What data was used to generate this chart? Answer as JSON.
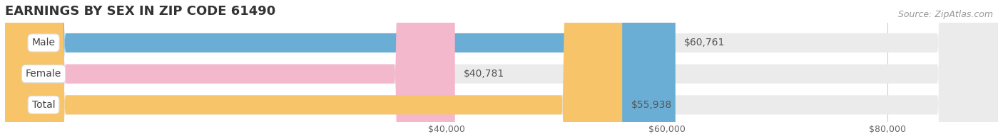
{
  "title": "EARNINGS BY SEX IN ZIP CODE 61490",
  "source": "Source: ZipAtlas.com",
  "categories": [
    "Male",
    "Female",
    "Total"
  ],
  "values": [
    60761,
    40781,
    55938
  ],
  "bar_colors": [
    "#6aaed6",
    "#f4b8cc",
    "#f7c46a"
  ],
  "bar_bg_color": "#ebebeb",
  "value_labels": [
    "$60,761",
    "$40,781",
    "$55,938"
  ],
  "x_min": 0,
  "x_max": 90000,
  "x_ticks": [
    40000,
    60000,
    80000
  ],
  "x_tick_labels": [
    "$40,000",
    "$60,000",
    "$80,000"
  ],
  "title_fontsize": 13,
  "label_fontsize": 10,
  "value_fontsize": 10,
  "axis_fontsize": 9,
  "source_fontsize": 9,
  "fig_width": 14.06,
  "fig_height": 1.96,
  "dpi": 100
}
